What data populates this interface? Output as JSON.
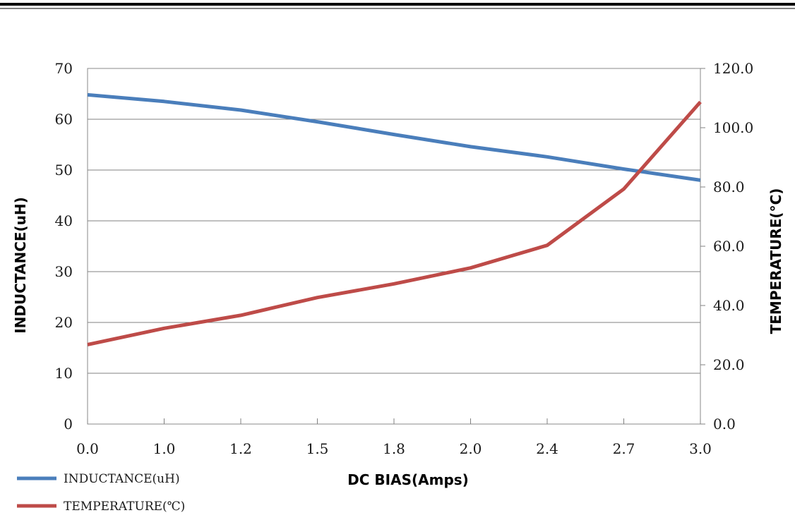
{
  "chart_data": {
    "type": "line",
    "categories": [
      "0.0",
      "1.0",
      "1.2",
      "1.5",
      "1.8",
      "2.0",
      "2.4",
      "2.7",
      "3.0"
    ],
    "xlabel": "DC BIAS(Amps)",
    "series": [
      {
        "name": "INDUCTANCE(uH)",
        "axis": "left",
        "color": "#4a7ebb",
        "values": [
          64.8,
          63.5,
          61.8,
          59.5,
          57.0,
          54.6,
          52.6,
          50.2,
          48.0
        ]
      },
      {
        "name": "TEMPERATURE(℃)",
        "axis": "right",
        "color": "#be4b48",
        "values": [
          26.8,
          32.3,
          36.7,
          42.7,
          47.3,
          52.7,
          60.3,
          79.3,
          108.7
        ]
      }
    ],
    "y_left": {
      "label": "INDUCTANCE(uH)",
      "range": [
        0,
        70
      ],
      "ticks": [
        "0",
        "10",
        "20",
        "30",
        "40",
        "50",
        "60",
        "70"
      ],
      "tick_values": [
        0,
        10,
        20,
        30,
        40,
        50,
        60,
        70
      ]
    },
    "y_right": {
      "label": "TEMPERATURE(°C)",
      "range": [
        0,
        120
      ],
      "ticks": [
        "0.0",
        "20.0",
        "40.0",
        "60.0",
        "80.0",
        "100.0",
        "120.0"
      ],
      "tick_values": [
        0,
        20,
        40,
        60,
        80,
        100,
        120
      ]
    },
    "grid": true,
    "legend_position": "bottom-left"
  }
}
